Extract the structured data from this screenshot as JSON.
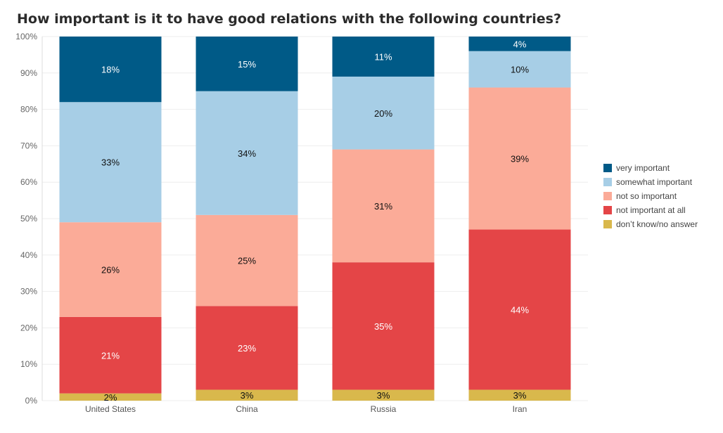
{
  "chart_data": {
    "type": "bar",
    "stacked": true,
    "title": "How important is it to have good relations with the following countries?",
    "xlabel": "",
    "ylabel": "",
    "ylim": [
      0,
      100
    ],
    "y_ticks": [
      "0%",
      "10%",
      "20%",
      "30%",
      "40%",
      "50%",
      "60%",
      "70%",
      "80%",
      "90%",
      "100%"
    ],
    "categories": [
      "United States",
      "China",
      "Russia",
      "Iran"
    ],
    "series": [
      {
        "name": "don't know/no answer",
        "color": "#d9b84c",
        "label_color": "#111111",
        "values": [
          2,
          3,
          3,
          3
        ],
        "labels": [
          "2%",
          "3%",
          "3%",
          "3%"
        ]
      },
      {
        "name": "not important at all",
        "color": "#e44547",
        "label_color": "#ffffff",
        "values": [
          21,
          23,
          35,
          44
        ],
        "labels": [
          "21%",
          "23%",
          "35%",
          "44%"
        ]
      },
      {
        "name": "not so important",
        "color": "#fbab98",
        "label_color": "#111111",
        "values": [
          26,
          25,
          31,
          39
        ],
        "labels": [
          "26%",
          "25%",
          "31%",
          "39%"
        ]
      },
      {
        "name": "somewhat important",
        "color": "#a7cee6",
        "label_color": "#111111",
        "values": [
          33,
          34,
          20,
          10
        ],
        "labels": [
          "33%",
          "34%",
          "20%",
          "10%"
        ]
      },
      {
        "name": "very important",
        "color": "#005a87",
        "label_color": "#ffffff",
        "values": [
          18,
          15,
          11,
          4
        ],
        "labels": [
          "18%",
          "15%",
          "11%",
          "4%"
        ]
      }
    ],
    "legend": {
      "position": "right",
      "order": [
        "very important",
        "somewhat important",
        "not so important",
        "not important at all",
        "don't know/no answer"
      ],
      "labels": [
        "very important",
        "somewhat important",
        "not so important",
        "not important at all",
        "don’t know/no answer"
      ]
    },
    "grid": true
  }
}
